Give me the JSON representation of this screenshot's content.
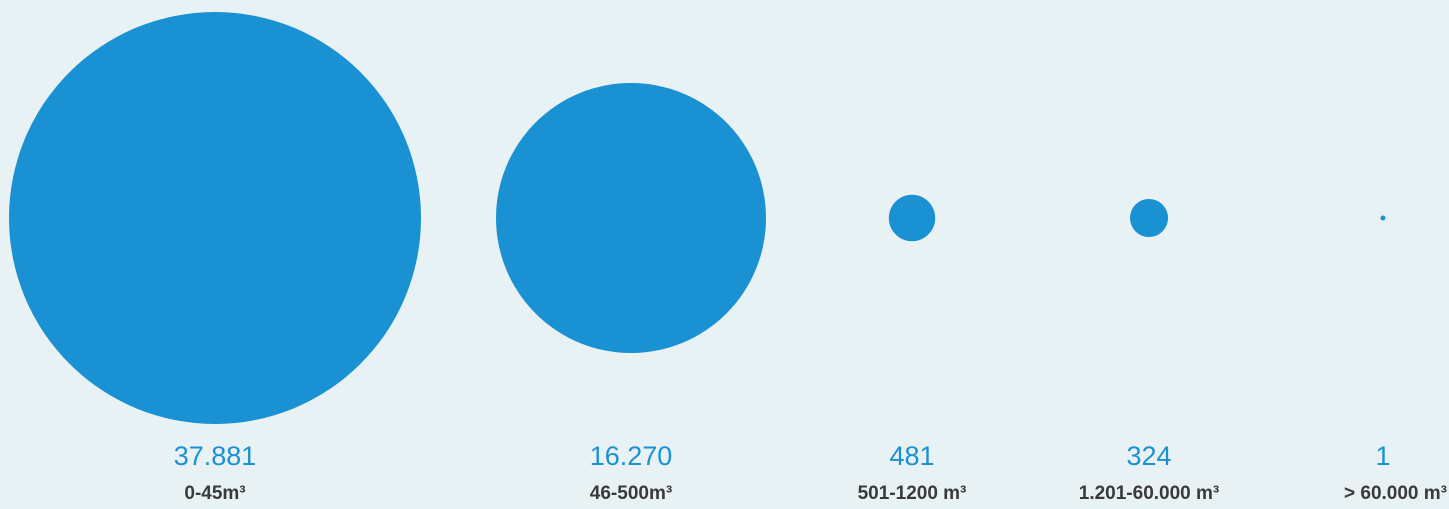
{
  "chart_data": {
    "type": "bubble",
    "title": "",
    "accent_color": "#1a91d2",
    "label_color": "#3a3a3a",
    "background_color": "#e8f2f4",
    "items": [
      {
        "value": 37881,
        "value_label": "37.881",
        "category": "0-45m³"
      },
      {
        "value": 16270,
        "value_label": "16.270",
        "category": "46-500m³"
      },
      {
        "value": 481,
        "value_label": "481",
        "category": "501-1200 m³"
      },
      {
        "value": 324,
        "value_label": "324",
        "category": "1.201-60.000 m³"
      },
      {
        "value": 1,
        "value_label": "1",
        "category": "> 60.000 m³"
      }
    ]
  }
}
